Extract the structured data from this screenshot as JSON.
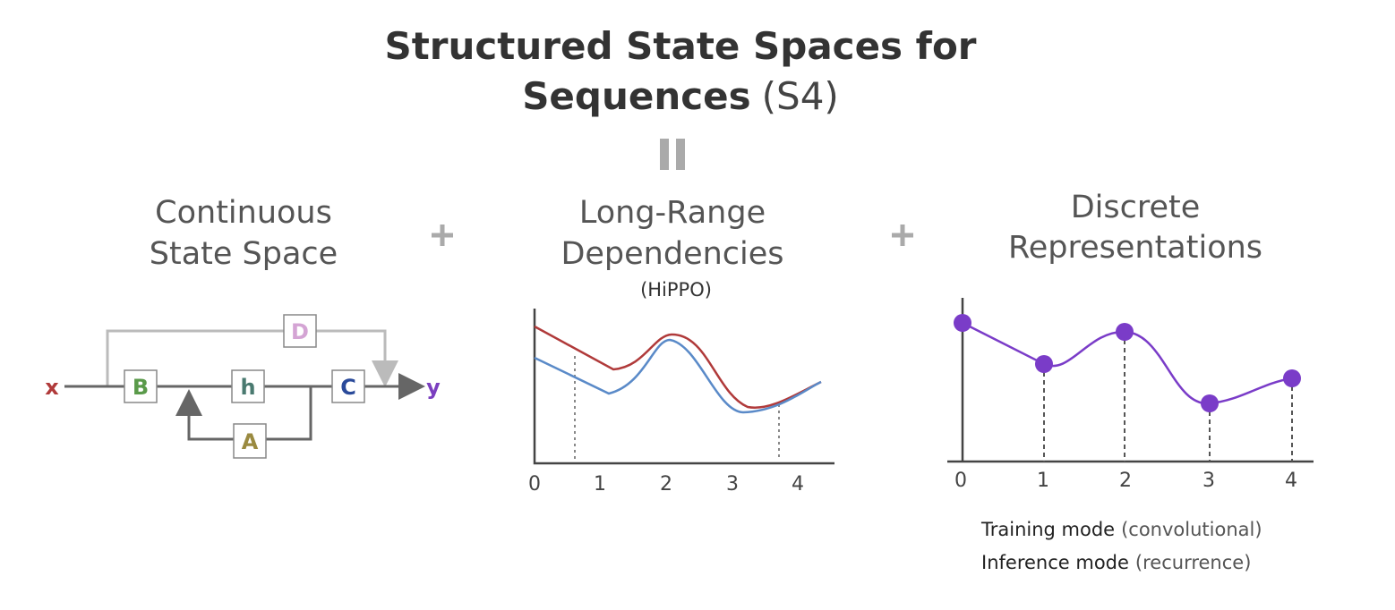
{
  "title": {
    "line1": "Structured State Spaces for",
    "line2_bold": "Sequences",
    "line2_rest": "(S4)"
  },
  "panels": [
    {
      "title": [
        "Continuous",
        "State Space"
      ],
      "diagram": {
        "input": "x",
        "output": "y",
        "blocks": {
          "B": "B",
          "h": "h",
          "C": "C",
          "A": "A",
          "D": "D"
        }
      }
    },
    {
      "title": [
        "Long-Range",
        "Dependencies"
      ],
      "subtitle": "(HiPPO)",
      "ticks": [
        0,
        1,
        2,
        3,
        4
      ]
    },
    {
      "title": [
        "Discrete",
        "Representations"
      ],
      "ticks": [
        0,
        1,
        2,
        3,
        4
      ],
      "modes": [
        {
          "name": "Training mode",
          "detail": "(convolutional)"
        },
        {
          "name": "Inference mode",
          "detail": "(recurrence)"
        }
      ]
    }
  ]
}
